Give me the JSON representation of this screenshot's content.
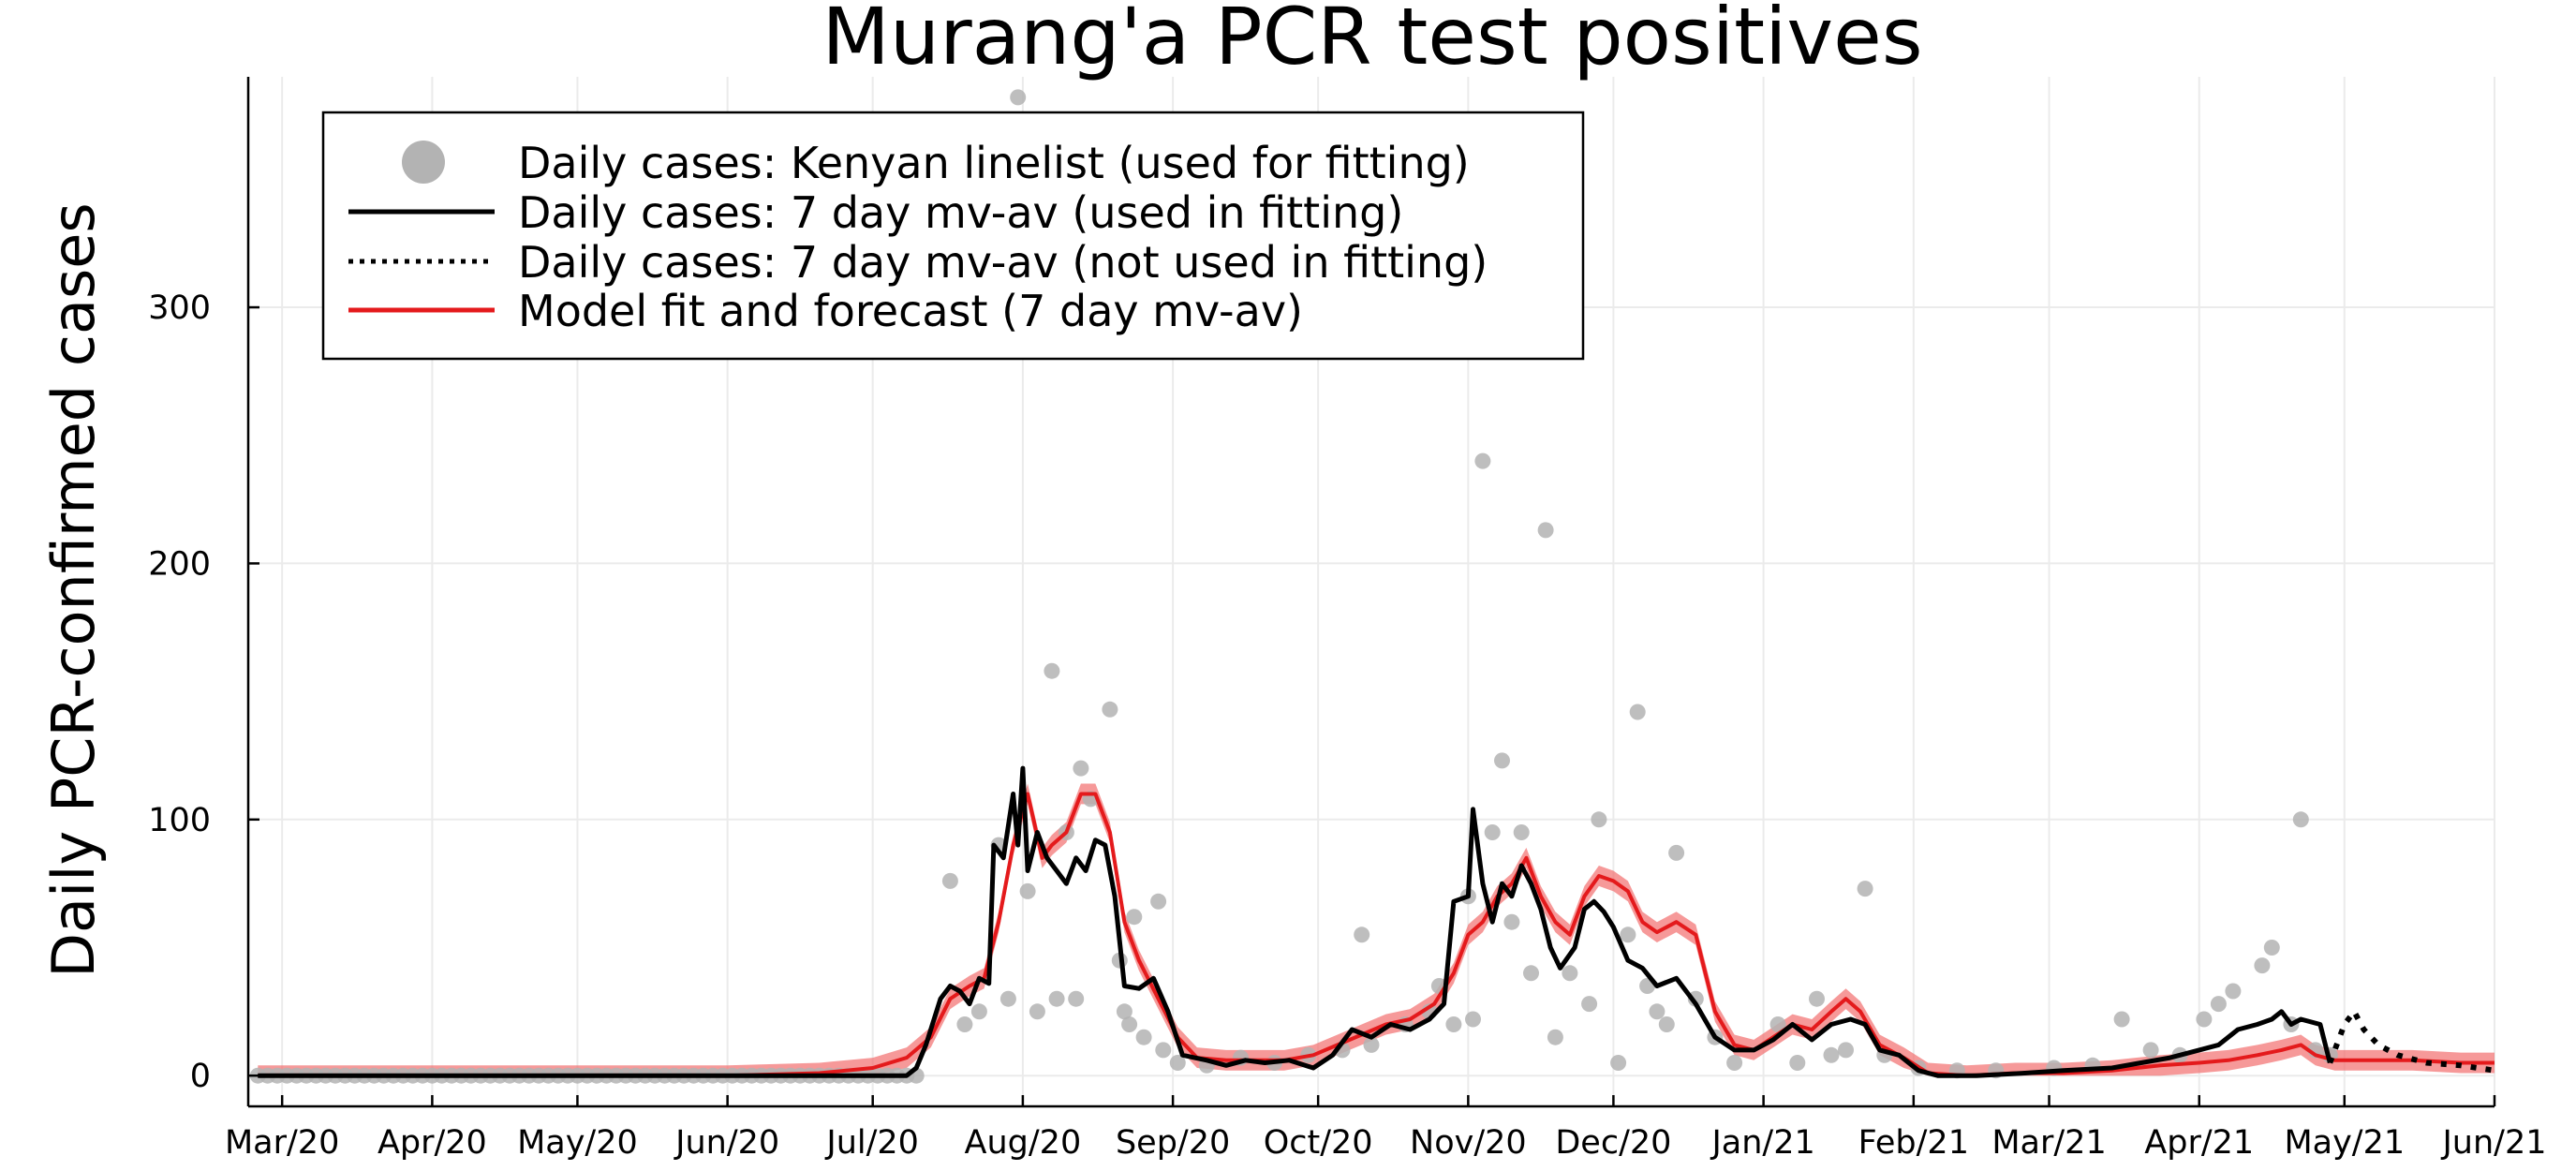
{
  "chart_data": {
    "type": "line",
    "title": "Murang'a PCR test positives",
    "xlabel": "",
    "ylabel": "Daily PCR-confirmed cases",
    "x_range": [
      "2020-02-23",
      "2021-06-01"
    ],
    "ylim": [
      -12,
      390
    ],
    "yticks": [
      0,
      100,
      200,
      300
    ],
    "xticks": [
      {
        "date": "2020-03-01",
        "label": "Mar/20"
      },
      {
        "date": "2020-04-01",
        "label": "Apr/20"
      },
      {
        "date": "2020-05-01",
        "label": "May/20"
      },
      {
        "date": "2020-06-01",
        "label": "Jun/20"
      },
      {
        "date": "2020-07-01",
        "label": "Jul/20"
      },
      {
        "date": "2020-08-01",
        "label": "Aug/20"
      },
      {
        "date": "2020-09-01",
        "label": "Sep/20"
      },
      {
        "date": "2020-10-01",
        "label": "Oct/20"
      },
      {
        "date": "2020-11-01",
        "label": "Nov/20"
      },
      {
        "date": "2020-12-01",
        "label": "Dec/20"
      },
      {
        "date": "2021-01-01",
        "label": "Jan/21"
      },
      {
        "date": "2021-02-01",
        "label": "Feb/21"
      },
      {
        "date": "2021-03-01",
        "label": "Mar/21"
      },
      {
        "date": "2021-04-01",
        "label": "Apr/21"
      },
      {
        "date": "2021-05-01",
        "label": "May/21"
      },
      {
        "date": "2021-06-01",
        "label": "Jun/21"
      }
    ],
    "grid": true,
    "legend_position": "top-left",
    "legend": [
      {
        "label": "Daily cases: Kenyan linelist (used for fitting)",
        "style": "marker"
      },
      {
        "label": "Daily cases: 7 day mv-av (used in fitting)",
        "style": "solid"
      },
      {
        "label": "Daily cases: 7 day mv-av (not used in fitting)",
        "style": "dotted"
      },
      {
        "label": "Model fit and forecast (7 day mv-av)",
        "style": "red"
      }
    ],
    "colors": {
      "scatter": "#b3b3b3",
      "avg": "#000000",
      "model": "#e41a1c",
      "band": "#f26d6d",
      "grid": "#ebebeb",
      "axis": "#000000"
    },
    "scatter": {
      "name": "Daily cases: Kenyan linelist (used for fitting)",
      "points": [
        [
          "2020-07-17",
          76
        ],
        [
          "2020-07-20",
          20
        ],
        [
          "2020-07-23",
          25
        ],
        [
          "2020-07-27",
          90
        ],
        [
          "2020-07-29",
          30
        ],
        [
          "2020-07-31",
          382
        ],
        [
          "2020-08-02",
          72
        ],
        [
          "2020-08-04",
          25
        ],
        [
          "2020-08-07",
          158
        ],
        [
          "2020-08-08",
          30
        ],
        [
          "2020-08-10",
          95
        ],
        [
          "2020-08-12",
          30
        ],
        [
          "2020-08-13",
          120
        ],
        [
          "2020-08-15",
          108
        ],
        [
          "2020-08-19",
          143
        ],
        [
          "2020-08-21",
          45
        ],
        [
          "2020-08-22",
          25
        ],
        [
          "2020-08-23",
          20
        ],
        [
          "2020-08-24",
          62
        ],
        [
          "2020-08-26",
          15
        ],
        [
          "2020-08-29",
          68
        ],
        [
          "2020-08-30",
          10
        ],
        [
          "2020-09-02",
          5
        ],
        [
          "2020-09-08",
          4
        ],
        [
          "2020-09-15",
          7
        ],
        [
          "2020-09-22",
          5
        ],
        [
          "2020-09-29",
          8
        ],
        [
          "2020-10-06",
          10
        ],
        [
          "2020-10-10",
          55
        ],
        [
          "2020-10-12",
          12
        ],
        [
          "2020-10-19",
          20
        ],
        [
          "2020-10-24",
          25
        ],
        [
          "2020-10-26",
          35
        ],
        [
          "2020-10-29",
          20
        ],
        [
          "2020-11-01",
          70
        ],
        [
          "2020-11-02",
          22
        ],
        [
          "2020-11-04",
          240
        ],
        [
          "2020-11-06",
          95
        ],
        [
          "2020-11-08",
          123
        ],
        [
          "2020-11-10",
          60
        ],
        [
          "2020-11-12",
          95
        ],
        [
          "2020-11-14",
          40
        ],
        [
          "2020-11-17",
          213
        ],
        [
          "2020-11-19",
          15
        ],
        [
          "2020-11-22",
          40
        ],
        [
          "2020-11-26",
          28
        ],
        [
          "2020-11-28",
          100
        ],
        [
          "2020-12-02",
          5
        ],
        [
          "2020-12-04",
          55
        ],
        [
          "2020-12-06",
          142
        ],
        [
          "2020-12-08",
          35
        ],
        [
          "2020-12-10",
          25
        ],
        [
          "2020-12-12",
          20
        ],
        [
          "2020-12-14",
          87
        ],
        [
          "2020-12-18",
          30
        ],
        [
          "2020-12-22",
          15
        ],
        [
          "2020-12-26",
          5
        ],
        [
          "2021-01-04",
          20
        ],
        [
          "2021-01-08",
          5
        ],
        [
          "2021-01-12",
          30
        ],
        [
          "2021-01-15",
          8
        ],
        [
          "2021-01-18",
          10
        ],
        [
          "2021-01-22",
          73
        ],
        [
          "2021-01-26",
          8
        ],
        [
          "2021-02-02",
          3
        ],
        [
          "2021-02-10",
          2
        ],
        [
          "2021-02-18",
          2
        ],
        [
          "2021-03-02",
          3
        ],
        [
          "2021-03-10",
          4
        ],
        [
          "2021-03-16",
          22
        ],
        [
          "2021-03-22",
          10
        ],
        [
          "2021-03-28",
          8
        ],
        [
          "2021-04-02",
          22
        ],
        [
          "2021-04-05",
          28
        ],
        [
          "2021-04-08",
          33
        ],
        [
          "2021-04-14",
          43
        ],
        [
          "2021-04-16",
          50
        ],
        [
          "2021-04-20",
          20
        ],
        [
          "2021-04-22",
          100
        ],
        [
          "2021-04-25",
          10
        ],
        [
          "2021-04-28",
          8
        ]
      ],
      "zero_days": {
        "from": "2020-02-25",
        "to": "2020-07-10",
        "value": 0
      }
    },
    "avg_used": {
      "name": "Daily cases: 7 day mv-av (used in fitting)",
      "points": [
        [
          "2020-02-25",
          0
        ],
        [
          "2020-07-08",
          0
        ],
        [
          "2020-07-10",
          3
        ],
        [
          "2020-07-12",
          12
        ],
        [
          "2020-07-15",
          30
        ],
        [
          "2020-07-17",
          35
        ],
        [
          "2020-07-19",
          33
        ],
        [
          "2020-07-21",
          28
        ],
        [
          "2020-07-23",
          38
        ],
        [
          "2020-07-25",
          36
        ],
        [
          "2020-07-26",
          90
        ],
        [
          "2020-07-28",
          85
        ],
        [
          "2020-07-30",
          110
        ],
        [
          "2020-07-31",
          90
        ],
        [
          "2020-08-01",
          120
        ],
        [
          "2020-08-02",
          80
        ],
        [
          "2020-08-04",
          95
        ],
        [
          "2020-08-06",
          85
        ],
        [
          "2020-08-08",
          80
        ],
        [
          "2020-08-10",
          75
        ],
        [
          "2020-08-12",
          85
        ],
        [
          "2020-08-14",
          80
        ],
        [
          "2020-08-16",
          92
        ],
        [
          "2020-08-18",
          90
        ],
        [
          "2020-08-20",
          70
        ],
        [
          "2020-08-22",
          35
        ],
        [
          "2020-08-25",
          34
        ],
        [
          "2020-08-28",
          38
        ],
        [
          "2020-08-31",
          25
        ],
        [
          "2020-09-03",
          8
        ],
        [
          "2020-09-08",
          6
        ],
        [
          "2020-09-12",
          4
        ],
        [
          "2020-09-16",
          6
        ],
        [
          "2020-09-20",
          5
        ],
        [
          "2020-09-25",
          6
        ],
        [
          "2020-09-30",
          3
        ],
        [
          "2020-10-04",
          8
        ],
        [
          "2020-10-08",
          18
        ],
        [
          "2020-10-12",
          15
        ],
        [
          "2020-10-16",
          20
        ],
        [
          "2020-10-20",
          18
        ],
        [
          "2020-10-24",
          22
        ],
        [
          "2020-10-27",
          28
        ],
        [
          "2020-10-29",
          68
        ],
        [
          "2020-11-01",
          70
        ],
        [
          "2020-11-02",
          104
        ],
        [
          "2020-11-04",
          75
        ],
        [
          "2020-11-06",
          60
        ],
        [
          "2020-11-08",
          75
        ],
        [
          "2020-11-10",
          70
        ],
        [
          "2020-11-12",
          82
        ],
        [
          "2020-11-14",
          75
        ],
        [
          "2020-11-16",
          65
        ],
        [
          "2020-11-18",
          50
        ],
        [
          "2020-11-20",
          42
        ],
        [
          "2020-11-23",
          50
        ],
        [
          "2020-11-25",
          65
        ],
        [
          "2020-11-27",
          68
        ],
        [
          "2020-11-29",
          64
        ],
        [
          "2020-12-01",
          58
        ],
        [
          "2020-12-04",
          45
        ],
        [
          "2020-12-07",
          42
        ],
        [
          "2020-12-10",
          35
        ],
        [
          "2020-12-14",
          38
        ],
        [
          "2020-12-18",
          28
        ],
        [
          "2020-12-22",
          15
        ],
        [
          "2020-12-26",
          10
        ],
        [
          "2020-12-30",
          10
        ],
        [
          "2021-01-03",
          14
        ],
        [
          "2021-01-07",
          20
        ],
        [
          "2021-01-11",
          14
        ],
        [
          "2021-01-15",
          20
        ],
        [
          "2021-01-19",
          22
        ],
        [
          "2021-01-22",
          20
        ],
        [
          "2021-01-25",
          10
        ],
        [
          "2021-01-29",
          8
        ],
        [
          "2021-02-02",
          2
        ],
        [
          "2021-02-06",
          0
        ],
        [
          "2021-02-14",
          0
        ],
        [
          "2021-02-24",
          1
        ],
        [
          "2021-03-04",
          2
        ],
        [
          "2021-03-14",
          3
        ],
        [
          "2021-03-20",
          5
        ],
        [
          "2021-03-26",
          7
        ],
        [
          "2021-04-01",
          10
        ],
        [
          "2021-04-05",
          12
        ],
        [
          "2021-04-09",
          18
        ],
        [
          "2021-04-13",
          20
        ],
        [
          "2021-04-16",
          22
        ],
        [
          "2021-04-18",
          25
        ],
        [
          "2021-04-20",
          20
        ],
        [
          "2021-04-22",
          22
        ],
        [
          "2021-04-26",
          20
        ],
        [
          "2021-04-28",
          5
        ]
      ]
    },
    "avg_not_used": {
      "name": "Daily cases: 7 day mv-av (not used in fitting)",
      "points": [
        [
          "2021-04-28",
          5
        ],
        [
          "2021-05-01",
          20
        ],
        [
          "2021-05-03",
          25
        ],
        [
          "2021-05-05",
          18
        ],
        [
          "2021-05-08",
          12
        ],
        [
          "2021-05-12",
          8
        ],
        [
          "2021-05-18",
          5
        ],
        [
          "2021-05-25",
          4
        ],
        [
          "2021-06-01",
          2
        ]
      ]
    },
    "model": {
      "name": "Model fit and forecast (7 day mv-av)",
      "points": [
        [
          "2020-02-25",
          0
        ],
        [
          "2020-06-01",
          0
        ],
        [
          "2020-06-20",
          1
        ],
        [
          "2020-07-01",
          3
        ],
        [
          "2020-07-08",
          7
        ],
        [
          "2020-07-13",
          15
        ],
        [
          "2020-07-17",
          30
        ],
        [
          "2020-07-21",
          35
        ],
        [
          "2020-07-24",
          38
        ],
        [
          "2020-07-27",
          60
        ],
        [
          "2020-07-30",
          90
        ],
        [
          "2020-08-02",
          110
        ],
        [
          "2020-08-05",
          85
        ],
        [
          "2020-08-07",
          90
        ],
        [
          "2020-08-10",
          95
        ],
        [
          "2020-08-13",
          110
        ],
        [
          "2020-08-16",
          110
        ],
        [
          "2020-08-19",
          95
        ],
        [
          "2020-08-22",
          60
        ],
        [
          "2020-08-25",
          45
        ],
        [
          "2020-08-29",
          30
        ],
        [
          "2020-09-02",
          15
        ],
        [
          "2020-09-06",
          7
        ],
        [
          "2020-09-12",
          6
        ],
        [
          "2020-09-18",
          6
        ],
        [
          "2020-09-24",
          6
        ],
        [
          "2020-09-30",
          8
        ],
        [
          "2020-10-05",
          12
        ],
        [
          "2020-10-10",
          16
        ],
        [
          "2020-10-15",
          20
        ],
        [
          "2020-10-20",
          22
        ],
        [
          "2020-10-25",
          28
        ],
        [
          "2020-10-29",
          40
        ],
        [
          "2020-11-01",
          55
        ],
        [
          "2020-11-04",
          60
        ],
        [
          "2020-11-07",
          70
        ],
        [
          "2020-11-10",
          75
        ],
        [
          "2020-11-13",
          85
        ],
        [
          "2020-11-16",
          70
        ],
        [
          "2020-11-19",
          60
        ],
        [
          "2020-11-22",
          55
        ],
        [
          "2020-11-25",
          70
        ],
        [
          "2020-11-28",
          78
        ],
        [
          "2020-12-01",
          76
        ],
        [
          "2020-12-04",
          72
        ],
        [
          "2020-12-07",
          60
        ],
        [
          "2020-12-10",
          56
        ],
        [
          "2020-12-14",
          60
        ],
        [
          "2020-12-18",
          55
        ],
        [
          "2020-12-22",
          25
        ],
        [
          "2020-12-26",
          12
        ],
        [
          "2020-12-30",
          10
        ],
        [
          "2021-01-03",
          15
        ],
        [
          "2021-01-07",
          20
        ],
        [
          "2021-01-11",
          18
        ],
        [
          "2021-01-15",
          25
        ],
        [
          "2021-01-18",
          30
        ],
        [
          "2021-01-21",
          25
        ],
        [
          "2021-01-25",
          12
        ],
        [
          "2021-01-30",
          7
        ],
        [
          "2021-02-04",
          1
        ],
        [
          "2021-02-12",
          0
        ],
        [
          "2021-02-22",
          1
        ],
        [
          "2021-03-04",
          1
        ],
        [
          "2021-03-14",
          2
        ],
        [
          "2021-03-24",
          4
        ],
        [
          "2021-04-01",
          5
        ],
        [
          "2021-04-07",
          6
        ],
        [
          "2021-04-13",
          8
        ],
        [
          "2021-04-18",
          10
        ],
        [
          "2021-04-22",
          12
        ],
        [
          "2021-04-25",
          8
        ],
        [
          "2021-04-29",
          6
        ],
        [
          "2021-05-06",
          6
        ],
        [
          "2021-05-15",
          6
        ],
        [
          "2021-05-25",
          5
        ],
        [
          "2021-06-01",
          5
        ]
      ],
      "band_halfwidth": 4
    }
  }
}
